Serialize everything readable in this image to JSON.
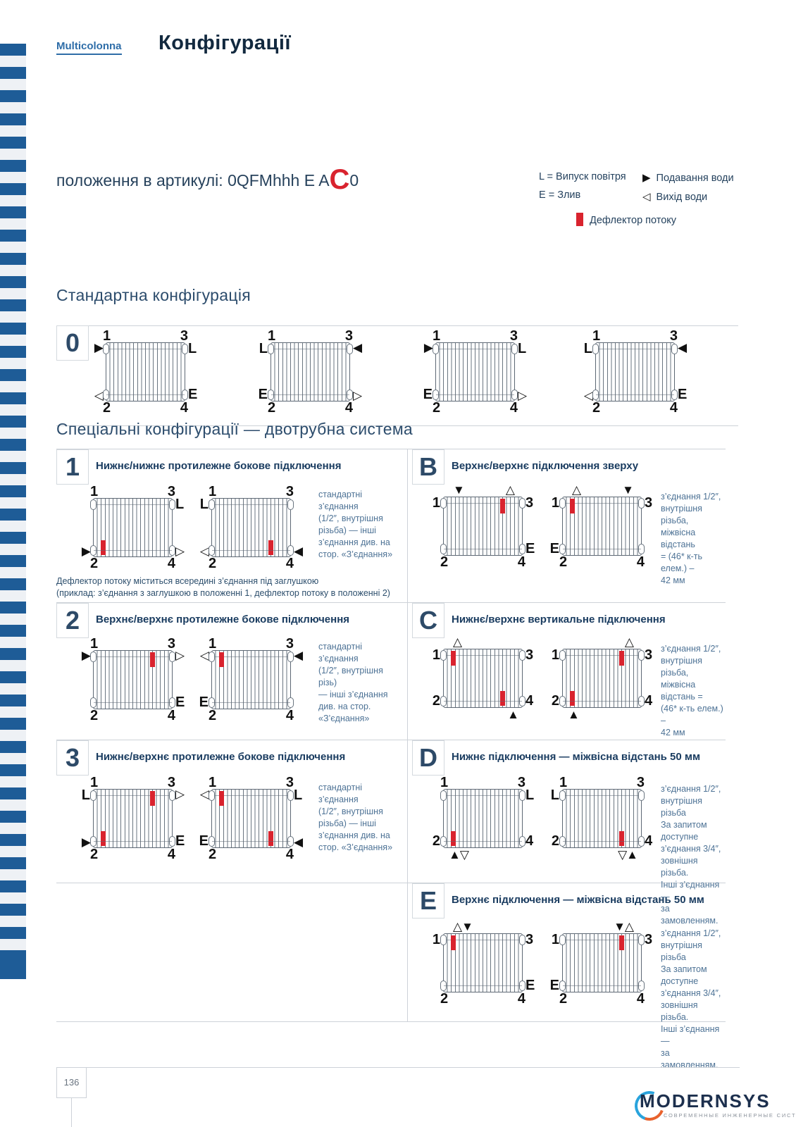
{
  "header": {
    "brand": "Multicolonna",
    "title": "Конфігурації"
  },
  "article": {
    "prefix": "положення в артикулі: 0QFMhhh E A",
    "highlight": "C",
    "suffix": "0"
  },
  "legend": {
    "l": "L = Випуск повітря",
    "e": "E = Злив",
    "supply": {
      "icon": "▶",
      "label": "Подавання води"
    },
    "outlet": {
      "icon": "◁",
      "label": "Вихід води"
    },
    "deflector": {
      "label": "Дефлектор потоку"
    }
  },
  "standard": {
    "title": "Стандартна конфігурація",
    "row_label": "0",
    "diagrams": [
      {
        "al": "1",
        "ar": "3",
        "lt": "▶",
        "rt": "L",
        "lb": "◁",
        "rb": "E",
        "bl": "2",
        "br": "4",
        "defl": []
      },
      {
        "al": "1",
        "ar": "3",
        "lt": "L",
        "rt": "◀",
        "lb": "E",
        "rb": "▷",
        "bl": "2",
        "br": "4",
        "defl": []
      },
      {
        "al": "1",
        "ar": "3",
        "lt": "▶",
        "rt": "L",
        "lb": "E",
        "rb": "▷",
        "bl": "2",
        "br": "4",
        "defl": []
      },
      {
        "al": "1",
        "ar": "3",
        "lt": "L",
        "rt": "◀",
        "lb": "◁",
        "rb": "E",
        "bl": "2",
        "br": "4",
        "defl": []
      }
    ]
  },
  "special": {
    "title": "Спеціальні конфігурації — двотрубна система",
    "cells": [
      {
        "label": "1",
        "heading": "Нижнє/нижнє протилежне бокове підключення",
        "note": [
          "стандартні з’єднання",
          "(1/2″, внутрішня",
          "різьба) — інші",
          "з’єднання див. на",
          "стор. «З’єднання»"
        ],
        "footnote": [
          "Дефлектор потоку міститься всередині з’єднання під заглушкою",
          "(приклад: з’єднання з заглушкою в положенні 1, дефлектор потоку в положенні 2)"
        ],
        "diagrams": [
          {
            "al": "1",
            "ar": "3",
            "rt": "L",
            "lb": "▶",
            "rb": "▷",
            "bl": "2",
            "br": "4",
            "defl": [
              "bl"
            ]
          },
          {
            "al": "1",
            "ar": "3",
            "lt": "L",
            "lb": "◁",
            "rb": "◀",
            "bl": "2",
            "br": "4",
            "defl": [
              "br"
            ]
          }
        ]
      },
      {
        "label": "B",
        "heading": "Верхнє/верхнє підключення зверху",
        "note": [
          "з’єднання 1/2″,",
          "внутрішня різьба,",
          "міжвісна відстань",
          "= (46* к-ть елем.) –",
          "42 мм"
        ],
        "footnote": [],
        "diagrams": [
          {
            "al": "▼",
            "ar": "△",
            "lt": "1",
            "rt": "3",
            "rb": "E",
            "bl": "2",
            "br": "4",
            "defl": [
              "tr"
            ]
          },
          {
            "al": "△",
            "ar": "▼",
            "lt": "1",
            "rt": "3",
            "lb": "E",
            "bl": "2",
            "br": "4",
            "defl": [
              "tl"
            ]
          }
        ]
      },
      {
        "label": "2",
        "heading": "Верхнє/верхнє протилежне бокове підключення",
        "note": [
          "стандартні з’єднання",
          "(1/2″, внутрішня різь)",
          "— інші з’єднання",
          "див. на стор.",
          "«З’єднання»"
        ],
        "footnote": [],
        "diagrams": [
          {
            "al": "1",
            "ar": "3",
            "lt": "▶",
            "rt": "▷",
            "rb": "E",
            "bl": "2",
            "br": "4",
            "defl": [
              "tr"
            ]
          },
          {
            "al": "1",
            "ar": "3",
            "lt": "◁",
            "rt": "◀",
            "lb": "E",
            "bl": "2",
            "br": "4",
            "defl": [
              "tl"
            ]
          }
        ]
      },
      {
        "label": "C",
        "heading": "Нижнє/верхнє вертикальне підключення",
        "note": [
          "з’єднання 1/2″,",
          "внутрішня різьба,",
          "міжвісна відстань =",
          "(46* к-ть елем.) –",
          "42 мм"
        ],
        "footnote": [],
        "diagrams": [
          {
            "al": "△",
            "lt": "1",
            "rt": "3",
            "lb": "2",
            "rb": "4",
            "br": "▲",
            "defl": [
              "tl",
              "br"
            ]
          },
          {
            "ar": "△",
            "lt": "1",
            "rt": "3",
            "lb": "2",
            "rb": "4",
            "bl": "▲",
            "defl": [
              "tr",
              "bl"
            ]
          }
        ]
      },
      {
        "label": "3",
        "heading": "Нижнє/верхнє протилежне бокове підключення",
        "note": [
          "стандартні з’єднання",
          "(1/2″, внутрішня",
          "різьба) — інші",
          "з’єднання див. на",
          "стор. «З’єднання»"
        ],
        "footnote": [],
        "diagrams": [
          {
            "al": "1",
            "ar": "3",
            "lt": "L",
            "rt": "▷",
            "lb": "▶",
            "rb": "E",
            "bl": "2",
            "br": "4",
            "defl": [
              "tr",
              "bl"
            ]
          },
          {
            "al": "1",
            "ar": "3",
            "lt": "◁",
            "rt": "L",
            "lb": "E",
            "rb": "◀",
            "bl": "2",
            "br": "4",
            "defl": [
              "tl",
              "br"
            ]
          }
        ]
      },
      {
        "label": "D",
        "heading": "Нижнє підключення — міжвісна відстань 50 мм",
        "note": [
          "з’єднання 1/2″,",
          "внутрішня різьба",
          "За запитом доступне",
          "з’єднання 3/4″,",
          "зовнішня різьба.",
          "Інші з’єднання —",
          "за замовленням."
        ],
        "footnote": [],
        "diagrams": [
          {
            "al": "1",
            "ar": "3",
            "rt": "L",
            "lb": "2",
            "rb": "4",
            "bl": "▲▽",
            "defl": [
              "bl"
            ]
          },
          {
            "al": "1",
            "ar": "3",
            "lt": "L",
            "lb": "2",
            "rb": "4",
            "br": "▽▲",
            "defl": [
              "br"
            ]
          }
        ]
      },
      {
        "label": "E",
        "heading": "Верхнє підключення — міжвісна відстань 50 мм",
        "note": [
          "з’єднання 1/2″,",
          "внутрішня різьба",
          "За запитом доступне",
          "з’єднання 3/4″,",
          "зовнішня різьба.",
          "Інші з’єднання —",
          "за замовленням."
        ],
        "footnote": [],
        "diagrams": [
          {
            "al": "△▼",
            "lt": "1",
            "rt": "3",
            "rb": "E",
            "bl": "2",
            "br": "4",
            "defl": [
              "tl"
            ]
          },
          {
            "ar": "▼△",
            "lt": "1",
            "rt": "3",
            "lb": "E",
            "bl": "2",
            "br": "4",
            "defl": [
              "tr"
            ]
          }
        ]
      }
    ]
  },
  "footer": {
    "page_number": "136",
    "brand": "MODERNSYS",
    "tagline": "СОВРЕМЕННЫЕ ИНЖЕНЕРНЫЕ СИСТЕМЫ"
  },
  "colors": {
    "stripe_blue": "#1e5c97",
    "navy": "#1a3c60",
    "red": "#d9232e",
    "note_blue": "#4e7396"
  }
}
